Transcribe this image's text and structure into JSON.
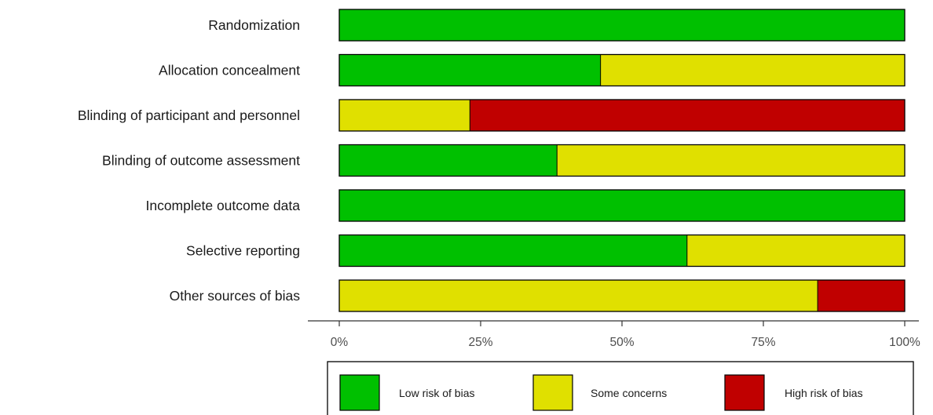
{
  "chart_data": {
    "type": "bar",
    "orientation": "horizontal",
    "stacked": true,
    "categories": [
      "Randomization",
      "Allocation concealment",
      "Blinding of participant and personnel",
      "Blinding of outcome assessment",
      "Incomplete outcome data",
      "Selective reporting",
      "Other sources of bias"
    ],
    "series": [
      {
        "name": "Low risk of bias",
        "color": "#00c000",
        "values": [
          100,
          46.2,
          0,
          38.5,
          100,
          61.5,
          0
        ]
      },
      {
        "name": "Some concerns",
        "color": "#e0e000",
        "values": [
          0,
          53.8,
          23.1,
          61.5,
          0,
          38.5,
          84.6
        ]
      },
      {
        "name": "High risk of bias",
        "color": "#c00000",
        "values": [
          0,
          0,
          76.9,
          0,
          0,
          0,
          15.4
        ]
      }
    ],
    "xlim": [
      0,
      100
    ],
    "x_ticks": [
      0,
      25,
      50,
      75,
      100
    ],
    "x_tick_labels": [
      "0%",
      "25%",
      "50%",
      "75%",
      "100%"
    ],
    "grid": false,
    "legend_position": "bottom"
  }
}
